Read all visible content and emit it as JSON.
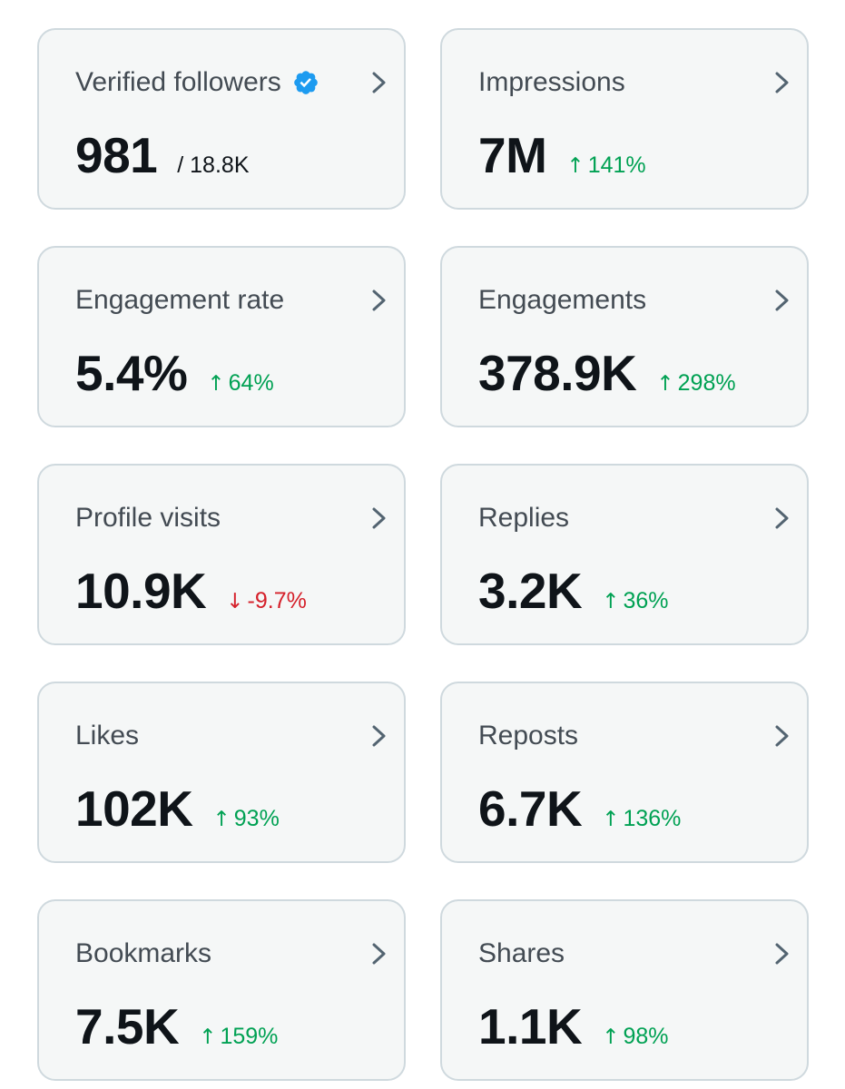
{
  "colors": {
    "card_background": "#f5f7f7",
    "card_border": "#cfd9de",
    "label_text": "#434b53",
    "value_text": "#0f1419",
    "positive": "#00a153",
    "negative": "#d5202a",
    "verified_badge": "#1d9bf0",
    "chevron": "#536471"
  },
  "icons": {
    "chevron": "chevron-right-icon",
    "verified": "verified-badge-icon",
    "up": "arrow-up-icon",
    "down": "arrow-down-icon"
  },
  "arrows": {
    "up": "↑",
    "down": "↓"
  },
  "cards": [
    {
      "title": "Verified followers",
      "value": "981",
      "total": "/ 18.8K",
      "verified": true
    },
    {
      "title": "Impressions",
      "value": "7M",
      "change": "141%",
      "direction": "up"
    },
    {
      "title": "Engagement rate",
      "value": "5.4%",
      "change": "64%",
      "direction": "up"
    },
    {
      "title": "Engagements",
      "value": "378.9K",
      "change": "298%",
      "direction": "up"
    },
    {
      "title": "Profile visits",
      "value": "10.9K",
      "change": "-9.7%",
      "direction": "down"
    },
    {
      "title": "Replies",
      "value": "3.2K",
      "change": "36%",
      "direction": "up"
    },
    {
      "title": "Likes",
      "value": "102K",
      "change": "93%",
      "direction": "up"
    },
    {
      "title": "Reposts",
      "value": "6.7K",
      "change": "136%",
      "direction": "up"
    },
    {
      "title": "Bookmarks",
      "value": "7.5K",
      "change": "159%",
      "direction": "up"
    },
    {
      "title": "Shares",
      "value": "1.1K",
      "change": "98%",
      "direction": "up"
    }
  ]
}
